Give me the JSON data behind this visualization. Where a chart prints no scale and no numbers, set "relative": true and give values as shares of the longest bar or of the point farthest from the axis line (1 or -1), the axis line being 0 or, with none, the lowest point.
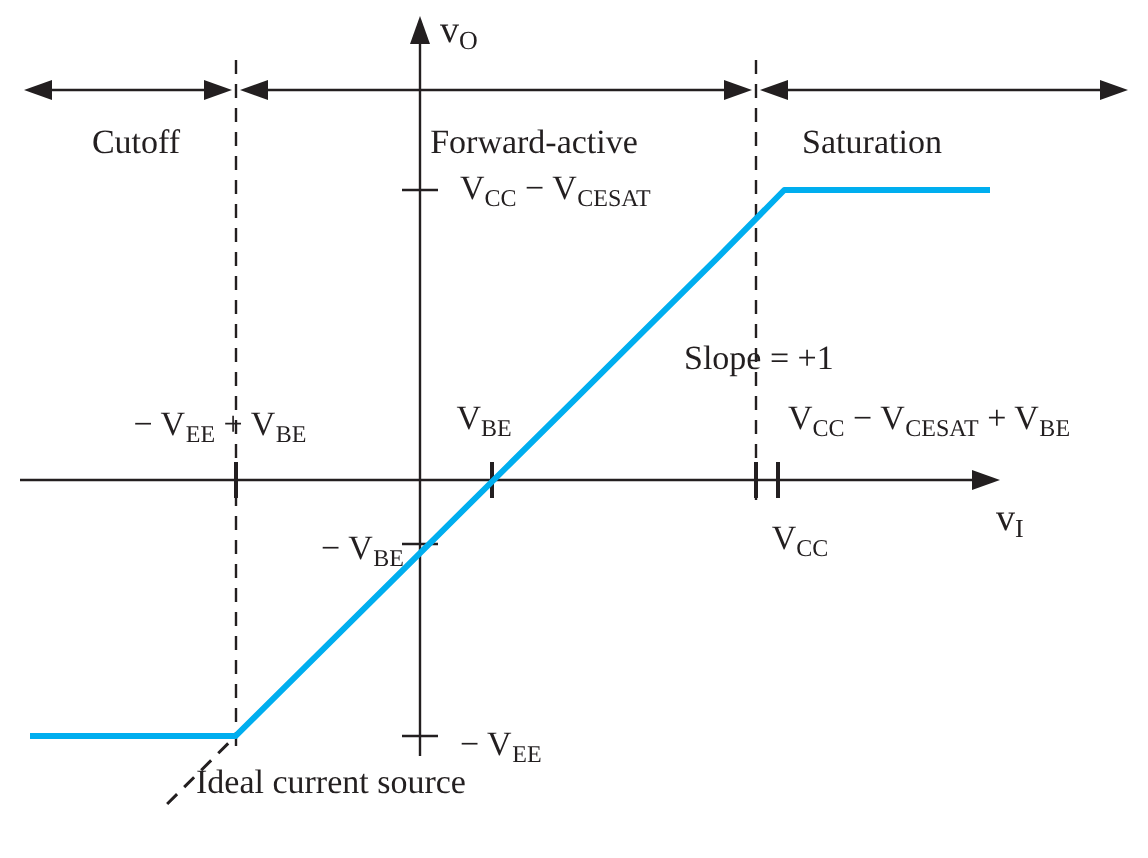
{
  "chart_data": {
    "type": "line",
    "relative": true,
    "xlabel": "v$_{I}$",
    "ylabel": "v$_{O}$",
    "categories": [
      null,
      null,
      null,
      null,
      null,
      null,
      null,
      null,
      null,
      null,
      null,
      null,
      null,
      null,
      null
    ],
    "series": [
      {
        "color": "#00aeef",
        "line_style": "solid",
        "values": [
          -0.79,
          -0.79,
          -0.79,
          -0.79,
          -0.58,
          -0.37,
          -0.16,
          0.05,
          0.26,
          0.47,
          0.68,
          0.895,
          0.895,
          0.895,
          0.895
        ]
      },
      {
        "color": "#231f20",
        "line_style": "dashed",
        "values": [
          null,
          null,
          -1,
          -0.79,
          null,
          null,
          null,
          null,
          null,
          null,
          null,
          null,
          null,
          null,
          null
        ]
      }
    ],
    "annotations": [
      "Cutoff",
      "Forward-active",
      "Saturation",
      "V$_{CC}$ − V$_{CESAT}$",
      "Slope = +1",
      "− V$_{EE}$ + V$_{BE}$",
      "V$_{BE}$",
      "V$_{CC}$ − V$_{CESAT}$ + V$_{BE}$",
      "V$_{CC}$",
      "− V$_{BE}$",
      "− V$_{EE}$",
      "Ideal current source"
    ],
    "legend": false,
    "marker": "none"
  }
}
